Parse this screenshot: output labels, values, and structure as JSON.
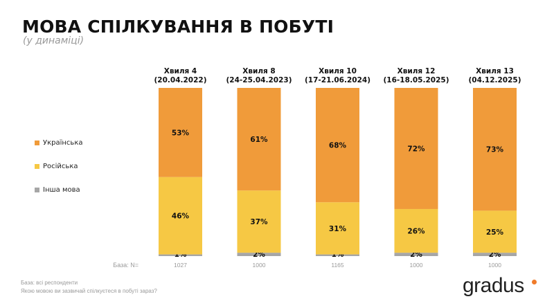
{
  "header": {
    "title": "МОВА СПІЛКУВАННЯ В ПОБУТІ",
    "subtitle": "(у динаміці)"
  },
  "chart_data": {
    "type": "bar",
    "stacked": true,
    "categories": [
      {
        "line1": "Хвиля 4",
        "line2": "(20.04.2022)"
      },
      {
        "line1": "Хвиля 8",
        "line2": "(24-25.04.2023)"
      },
      {
        "line1": "Хвиля 10",
        "line2": "(17-21.06.2024)"
      },
      {
        "line1": "Хвиля 12",
        "line2": "(16-18.05.2025)"
      },
      {
        "line1": "Хвиля 13",
        "line2": "(04.12.2025)"
      }
    ],
    "series": [
      {
        "name": "Інша мова",
        "color": "#A6A6A6",
        "values": [
          1,
          2,
          1,
          2,
          2
        ]
      },
      {
        "name": "Російська",
        "color": "#F6C844",
        "values": [
          46,
          37,
          31,
          26,
          25
        ]
      },
      {
        "name": "Українська",
        "color": "#F09B3A",
        "values": [
          53,
          61,
          68,
          72,
          73
        ]
      }
    ],
    "legend_order": [
      "Українська",
      "Російська",
      "Інша мова"
    ],
    "legend_placement": "left",
    "unit": "%",
    "ylim": [
      0,
      100
    ],
    "base_label": "База: N=",
    "base_values": [
      "1027",
      "1000",
      "1165",
      "1000",
      "1000"
    ]
  },
  "footer": {
    "line1": "База: всі респонденти",
    "line2": "Якою мовою ви зазвичай спілкуєтеся в побуті зараз?"
  },
  "logo": {
    "text": "gradus",
    "dot_color": "#F07B2A"
  }
}
